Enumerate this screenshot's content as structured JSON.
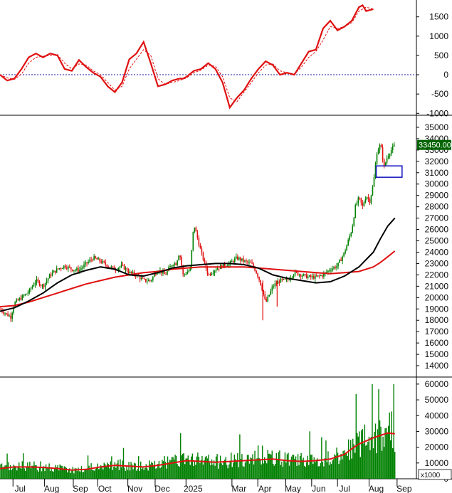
{
  "chart_data": [
    {
      "type": "line",
      "panel": "oscillator",
      "ylim": [
        -1050,
        1900
      ],
      "yticks": [
        1500,
        1000,
        500,
        0,
        -500,
        -1000
      ],
      "zero_line": true,
      "zero_line_color": "#1a1aa0",
      "series": [
        {
          "role": "oscillator",
          "color": "#e01010",
          "style": "solid",
          "x": [
            0,
            10,
            20,
            30,
            40,
            50,
            60,
            70,
            80,
            90,
            100,
            110,
            120,
            130,
            140,
            150,
            160,
            170,
            180,
            190,
            200,
            210,
            220,
            230,
            240,
            250,
            255,
            260,
            270,
            280,
            290,
            300,
            310,
            320,
            330,
            340,
            350,
            360,
            370,
            380,
            390,
            400,
            410,
            420,
            430,
            440,
            450,
            460,
            470,
            480,
            490,
            500,
            505,
            510,
            520,
            530,
            540,
            545,
            550
          ],
          "y": [
            0,
            -150,
            -100,
            150,
            450,
            550,
            450,
            550,
            500,
            150,
            100,
            380,
            200,
            50,
            -50,
            -300,
            -450,
            -200,
            400,
            550,
            850,
            300,
            -300,
            -250,
            -150,
            -100,
            -100,
            -50,
            100,
            150,
            300,
            150,
            -200,
            -850,
            -600,
            -400,
            -100,
            150,
            350,
            250,
            0,
            50,
            0,
            300,
            600,
            650,
            1200,
            1400,
            1150,
            1250,
            1400,
            1750,
            1800,
            1650,
            1700,
            0,
            0,
            0,
            0
          ]
        },
        {
          "role": "signal",
          "color": "#e01010",
          "style": "dashed",
          "x": [
            0,
            10,
            20,
            30,
            40,
            50,
            60,
            70,
            80,
            90,
            100,
            110,
            120,
            130,
            140,
            150,
            160,
            170,
            180,
            190,
            200,
            210,
            220,
            230,
            240,
            250,
            260,
            270,
            280,
            290,
            300,
            310,
            320,
            330,
            340,
            350,
            360,
            370,
            380,
            390,
            400,
            410,
            420,
            430,
            440,
            450,
            460,
            470,
            480,
            490,
            500,
            510,
            520,
            530,
            540,
            545
          ],
          "y": [
            0,
            -80,
            -120,
            20,
            300,
            450,
            480,
            500,
            520,
            300,
            150,
            280,
            250,
            100,
            0,
            -200,
            -400,
            -300,
            150,
            400,
            650,
            500,
            -100,
            -250,
            -200,
            -150,
            -80,
            50,
            120,
            250,
            220,
            -50,
            -600,
            -700,
            -450,
            -200,
            50,
            250,
            280,
            100,
            50,
            20,
            200,
            450,
            600,
            900,
            1250,
            1200,
            1250,
            1350,
            1650,
            1750,
            1700,
            0,
            0,
            0
          ]
        }
      ],
      "yticklabels": [
        "1500",
        "1000",
        "500",
        "0",
        "-500",
        "-1000"
      ]
    },
    {
      "type": "candlestick",
      "panel": "price",
      "ylim": [
        13000,
        36000
      ],
      "yticks": [
        35000,
        34000,
        33000,
        32000,
        31000,
        30000,
        29000,
        28000,
        27000,
        26000,
        25000,
        24000,
        23000,
        22000,
        21000,
        20000,
        19000,
        18000,
        17000,
        16000,
        15000,
        14000
      ],
      "yticklabels": [
        "35000",
        "34000",
        "33000",
        "32000",
        "31000",
        "30000",
        "29000",
        "28000",
        "27000",
        "26000",
        "25000",
        "24000",
        "23000",
        "22000",
        "21000",
        "20000",
        "19000",
        "18000",
        "17000",
        "16000",
        "15000",
        "14000"
      ],
      "last_price_label": "33450.00",
      "last_price": 33450,
      "last_price_color": "#006400",
      "close_path": {
        "x": [
          0,
          10,
          15,
          20,
          30,
          40,
          50,
          60,
          70,
          80,
          90,
          100,
          110,
          120,
          130,
          140,
          150,
          160,
          170,
          180,
          190,
          200,
          210,
          220,
          230,
          240,
          245,
          250,
          255,
          260,
          265,
          270,
          280,
          290,
          300,
          310,
          320,
          330,
          340,
          350,
          355,
          360,
          365,
          370,
          380,
          390,
          400,
          410,
          420,
          430,
          440,
          450,
          460,
          470,
          480,
          490,
          495,
          500,
          505,
          510,
          515,
          520,
          525,
          530,
          535,
          540,
          545,
          550
        ],
        "y": [
          19000,
          18500,
          18300,
          19500,
          20000,
          20500,
          21500,
          21000,
          22000,
          22500,
          22800,
          22500,
          22400,
          23000,
          23500,
          23200,
          22800,
          22500,
          22800,
          22200,
          22000,
          21500,
          21500,
          22500,
          22000,
          23000,
          23000,
          24000,
          22000,
          22200,
          22500,
          26500,
          24000,
          22000,
          22500,
          22800,
          23000,
          23500,
          23200,
          23000,
          22500,
          21800,
          20800,
          19500,
          21000,
          21500,
          21500,
          22200,
          22000,
          21800,
          21800,
          22000,
          22500,
          22800,
          24000,
          26000,
          28000,
          28800,
          28000,
          29000,
          28500,
          30000,
          32800,
          33500,
          31500,
          32500,
          33000,
          33450
        ]
      },
      "ma_black": {
        "color": "#000000",
        "x": [
          0,
          20,
          40,
          60,
          80,
          100,
          120,
          140,
          160,
          180,
          200,
          220,
          240,
          260,
          280,
          300,
          320,
          340,
          360,
          380,
          400,
          420,
          440,
          460,
          480,
          500,
          520,
          530,
          540,
          550
        ],
        "y": [
          18800,
          19100,
          19700,
          20400,
          21300,
          22000,
          22400,
          22700,
          22500,
          22000,
          21900,
          22200,
          22600,
          22800,
          22900,
          23000,
          23000,
          22900,
          22600,
          22000,
          21700,
          21500,
          21300,
          21400,
          21900,
          22700,
          24000,
          25200,
          26300,
          27000
        ]
      },
      "ma_red": {
        "color": "#e01010",
        "x": [
          0,
          20,
          40,
          60,
          80,
          100,
          120,
          140,
          160,
          180,
          200,
          220,
          240,
          260,
          280,
          300,
          320,
          340,
          360,
          380,
          400,
          420,
          440,
          460,
          480,
          500,
          520,
          530,
          540,
          550
        ],
        "y": [
          19200,
          19300,
          19600,
          20000,
          20400,
          20800,
          21200,
          21500,
          21800,
          22000,
          22200,
          22300,
          22500,
          22600,
          22700,
          22700,
          22700,
          22700,
          22600,
          22500,
          22400,
          22300,
          22200,
          22100,
          22200,
          22300,
          22700,
          23100,
          23600,
          24100
        ]
      },
      "highlight_box": {
        "color": "#1010c0",
        "y_from": 30600,
        "y_to": 31600,
        "x_from": 524,
        "x_to": 560
      }
    },
    {
      "type": "bar",
      "panel": "volume",
      "ylim": [
        0,
        64000
      ],
      "yticks": [
        60000,
        50000,
        40000,
        30000,
        20000,
        10000,
        0
      ],
      "yticklabels": [
        "60000",
        "50000",
        "40000",
        "30000",
        "20000",
        "10000",
        "0"
      ],
      "unit_label": "x1000",
      "bar_color": "#008000",
      "avg_color": "#e01010",
      "avg_line": {
        "x": [
          0,
          20,
          40,
          60,
          80,
          100,
          120,
          140,
          160,
          180,
          200,
          220,
          240,
          260,
          280,
          300,
          320,
          340,
          360,
          380,
          400,
          420,
          440,
          460,
          480,
          490,
          500,
          510,
          520,
          530,
          540,
          550
        ],
        "y": [
          6500,
          7500,
          7500,
          7200,
          6500,
          5500,
          6000,
          7500,
          8500,
          8000,
          7500,
          8500,
          10000,
          11500,
          11000,
          10500,
          11000,
          11500,
          12000,
          12500,
          11500,
          11000,
          11500,
          12500,
          15500,
          19000,
          22000,
          24000,
          26000,
          27500,
          29000,
          28500
        ]
      }
    }
  ],
  "x_axis": {
    "xlim": [
      0,
      580
    ],
    "labels": [
      {
        "text": "Jul",
        "x": 28
      },
      {
        "text": "Aug",
        "x": 72
      },
      {
        "text": "Sep",
        "x": 112
      },
      {
        "text": "Oct",
        "x": 146
      },
      {
        "text": "Nov",
        "x": 188
      },
      {
        "text": "Dec",
        "x": 226
      },
      {
        "text": "2025",
        "x": 269
      },
      {
        "text": "Mar",
        "x": 333
      },
      {
        "text": "Apr",
        "x": 369
      },
      {
        "text": "May",
        "x": 408
      },
      {
        "text": "Jun",
        "x": 444
      },
      {
        "text": "Jul",
        "x": 480
      },
      {
        "text": "Aug",
        "x": 524
      },
      {
        "text": "Sep",
        "x": 563
      }
    ]
  },
  "colors": {
    "up": "#008000",
    "down": "#e01010",
    "grid": "#000000",
    "background": "#ffffff"
  }
}
